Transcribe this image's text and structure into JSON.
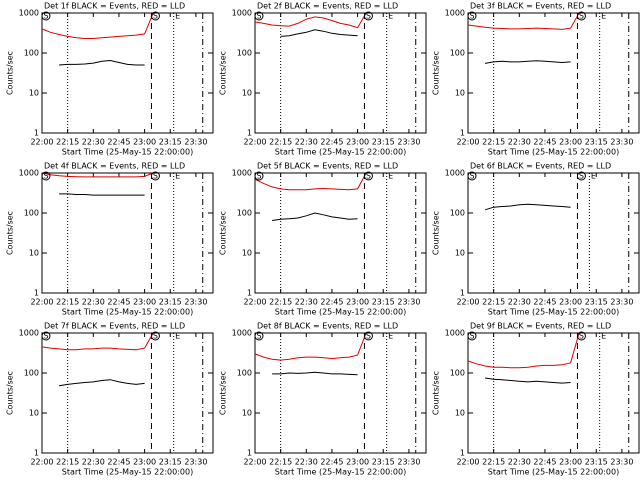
{
  "chart_data": [
    {
      "type": "line",
      "title": "Det 1f BLACK = Events, RED = LLD",
      "ylabel": "Counts/sec",
      "xlabel": "Start Time (25-May-15 22:00:00)",
      "x": [
        "22:00",
        "22:05",
        "22:10",
        "22:15",
        "22:20",
        "22:25",
        "22:30",
        "22:35",
        "22:40",
        "22:45",
        "22:50",
        "22:55",
        "23:00",
        "23:05"
      ],
      "series": [
        {
          "color": "#e00000",
          "values": [
            400,
            330,
            290,
            260,
            240,
            230,
            230,
            240,
            250,
            260,
            270,
            280,
            300,
            1000
          ]
        },
        {
          "color": "#000000",
          "values": [
            null,
            null,
            50,
            52,
            52,
            53,
            56,
            62,
            65,
            58,
            52,
            50,
            50,
            null
          ]
        }
      ],
      "xlim": [
        "22:00",
        "23:40"
      ],
      "xticks": [
        "22:00",
        "22:15",
        "22:30",
        "22:45",
        "23:00",
        "23:15",
        "23:30"
      ],
      "ylim": [
        1,
        1000
      ],
      "yticks": [
        1,
        10,
        100,
        1000
      ],
      "yscale": "log",
      "vlines": [
        {
          "x": "22:15",
          "style": "dotted"
        },
        {
          "x": "23:04",
          "style": "dashed"
        },
        {
          "x": "23:17",
          "style": "dotted"
        },
        {
          "x": "23:34",
          "style": "dashdot"
        }
      ],
      "annotations": [
        {
          "text": "S",
          "x": "22:00"
        },
        {
          "text": "S",
          "x": "23:04"
        },
        {
          "text": "E",
          "x": "23:17"
        }
      ]
    },
    {
      "type": "line",
      "title": "Det 2f BLACK = Events, RED = LLD",
      "ylabel": "Counts/sec",
      "xlabel": "Start Time (25-May-15 22:00:00)",
      "x": [
        "22:00",
        "22:05",
        "22:10",
        "22:15",
        "22:20",
        "22:25",
        "22:30",
        "22:35",
        "22:40",
        "22:45",
        "22:50",
        "22:55",
        "23:00",
        "23:05"
      ],
      "series": [
        {
          "color": "#e00000",
          "values": [
            600,
            550,
            500,
            480,
            470,
            550,
            700,
            800,
            750,
            650,
            550,
            500,
            430,
            1000
          ]
        },
        {
          "color": "#000000",
          "values": [
            null,
            null,
            null,
            260,
            270,
            300,
            330,
            380,
            350,
            310,
            290,
            280,
            270,
            null
          ]
        }
      ],
      "xlim": [
        "22:00",
        "23:40"
      ],
      "xticks": [
        "22:00",
        "22:15",
        "22:30",
        "22:45",
        "23:00",
        "23:15",
        "23:30"
      ],
      "ylim": [
        1,
        1000
      ],
      "yticks": [
        1,
        10,
        100,
        1000
      ],
      "yscale": "log",
      "vlines": [
        {
          "x": "22:15",
          "style": "dotted"
        },
        {
          "x": "23:04",
          "style": "dashed"
        },
        {
          "x": "23:17",
          "style": "dotted"
        },
        {
          "x": "23:34",
          "style": "dashdot"
        }
      ],
      "annotations": [
        {
          "text": "S",
          "x": "22:00"
        },
        {
          "text": "S",
          "x": "23:04"
        },
        {
          "text": "E",
          "x": "23:17"
        }
      ]
    },
    {
      "type": "line",
      "title": "Det 3f BLACK = Events, RED = LLD",
      "ylabel": "Counts/sec",
      "xlabel": "Start Time (25-May-15 22:00:00)",
      "x": [
        "22:00",
        "22:05",
        "22:10",
        "22:15",
        "22:20",
        "22:25",
        "22:30",
        "22:35",
        "22:40",
        "22:45",
        "22:50",
        "22:55",
        "23:00",
        "23:05"
      ],
      "series": [
        {
          "color": "#e00000",
          "values": [
            500,
            470,
            440,
            420,
            410,
            400,
            400,
            410,
            420,
            410,
            400,
            390,
            420,
            1000
          ]
        },
        {
          "color": "#000000",
          "values": [
            null,
            null,
            55,
            60,
            62,
            60,
            60,
            62,
            64,
            62,
            60,
            58,
            60,
            null
          ]
        }
      ],
      "xlim": [
        "22:00",
        "23:40"
      ],
      "xticks": [
        "22:00",
        "22:15",
        "22:30",
        "22:45",
        "23:00",
        "23:15",
        "23:30"
      ],
      "ylim": [
        1,
        1000
      ],
      "yticks": [
        1,
        10,
        100,
        1000
      ],
      "yscale": "log",
      "vlines": [
        {
          "x": "22:15",
          "style": "dotted"
        },
        {
          "x": "23:04",
          "style": "dashed"
        },
        {
          "x": "23:17",
          "style": "dotted"
        },
        {
          "x": "23:34",
          "style": "dashdot"
        }
      ],
      "annotations": [
        {
          "text": "S",
          "x": "22:00"
        },
        {
          "text": "S",
          "x": "23:04"
        },
        {
          "text": "E",
          "x": "23:17"
        }
      ]
    },
    {
      "type": "line",
      "title": "Det 4f BLACK = Events, RED = LLD",
      "ylabel": "Counts/sec",
      "xlabel": "Start Time (25-May-15 22:00:00)",
      "x": [
        "22:00",
        "22:05",
        "22:10",
        "22:15",
        "22:20",
        "22:25",
        "22:30",
        "22:35",
        "22:40",
        "22:45",
        "22:50",
        "22:55",
        "23:00",
        "23:05"
      ],
      "series": [
        {
          "color": "#e00000",
          "values": [
            1000,
            900,
            850,
            820,
            810,
            800,
            800,
            800,
            800,
            800,
            800,
            800,
            820,
            1000
          ]
        },
        {
          "color": "#000000",
          "values": [
            null,
            null,
            300,
            300,
            290,
            290,
            280,
            280,
            280,
            280,
            280,
            280,
            280,
            null
          ]
        }
      ],
      "xlim": [
        "22:00",
        "23:40"
      ],
      "xticks": [
        "22:00",
        "22:15",
        "22:30",
        "22:45",
        "23:00",
        "23:15",
        "23:30"
      ],
      "ylim": [
        1,
        1000
      ],
      "yticks": [
        1,
        10,
        100,
        1000
      ],
      "yscale": "log",
      "vlines": [
        {
          "x": "22:15",
          "style": "dotted"
        },
        {
          "x": "23:04",
          "style": "dashed"
        },
        {
          "x": "23:17",
          "style": "dotted"
        },
        {
          "x": "23:34",
          "style": "dashdot"
        }
      ],
      "annotations": [
        {
          "text": "S",
          "x": "22:00"
        },
        {
          "text": "S",
          "x": "23:04"
        },
        {
          "text": "E",
          "x": "23:17"
        }
      ]
    },
    {
      "type": "line",
      "title": "Det 5f BLACK = Events, RED = LLD",
      "ylabel": "Counts/sec",
      "xlabel": "Start Time (25-May-15 22:00:00)",
      "x": [
        "22:00",
        "22:05",
        "22:10",
        "22:15",
        "22:20",
        "22:25",
        "22:30",
        "22:35",
        "22:40",
        "22:45",
        "22:50",
        "22:55",
        "23:00",
        "23:05"
      ],
      "series": [
        {
          "color": "#e00000",
          "values": [
            700,
            550,
            450,
            400,
            380,
            380,
            380,
            400,
            410,
            400,
            390,
            380,
            400,
            1000
          ]
        },
        {
          "color": "#000000",
          "values": [
            null,
            null,
            65,
            70,
            72,
            75,
            85,
            100,
            90,
            80,
            75,
            70,
            72,
            null
          ]
        }
      ],
      "xlim": [
        "22:00",
        "23:40"
      ],
      "xticks": [
        "22:00",
        "22:15",
        "22:30",
        "22:45",
        "23:00",
        "23:15",
        "23:30"
      ],
      "ylim": [
        1,
        1000
      ],
      "yticks": [
        1,
        10,
        100,
        1000
      ],
      "yscale": "log",
      "vlines": [
        {
          "x": "22:15",
          "style": "dotted"
        },
        {
          "x": "23:04",
          "style": "dashed"
        },
        {
          "x": "23:17",
          "style": "dotted"
        },
        {
          "x": "23:34",
          "style": "dashdot"
        }
      ],
      "annotations": [
        {
          "text": "S",
          "x": "22:00"
        },
        {
          "text": "S",
          "x": "23:04"
        },
        {
          "text": "E",
          "x": "23:17"
        }
      ]
    },
    {
      "type": "line",
      "title": "Det 6f BLACK = Events, RED = LLD",
      "ylabel": "Counts/sec",
      "xlabel": "Start Time (25-May-15 22:00:00)",
      "x": [
        "22:00",
        "22:05",
        "22:10",
        "22:15",
        "22:20",
        "22:25",
        "22:30",
        "22:35",
        "22:40",
        "22:45",
        "22:50",
        "22:55",
        "23:00",
        "23:05"
      ],
      "series": [
        {
          "color": "#000000",
          "values": [
            null,
            null,
            120,
            140,
            145,
            150,
            160,
            165,
            160,
            155,
            150,
            145,
            140,
            null
          ]
        }
      ],
      "xlim": [
        "22:00",
        "23:40"
      ],
      "xticks": [
        "22:00",
        "22:15",
        "22:30",
        "22:45",
        "23:00",
        "23:15",
        "23:30"
      ],
      "ylim": [
        1,
        1000
      ],
      "yticks": [
        1,
        10,
        100,
        1000
      ],
      "yscale": "log",
      "vlines": [
        {
          "x": "22:15",
          "style": "dotted"
        },
        {
          "x": "23:04",
          "style": "dashed"
        },
        {
          "x": "23:11",
          "style": "dotted"
        },
        {
          "x": "23:34",
          "style": "dashdot"
        }
      ],
      "annotations": [
        {
          "text": "S",
          "x": "22:00"
        },
        {
          "text": "S",
          "x": "23:04"
        },
        {
          "text": "E",
          "x": "23:11"
        }
      ]
    },
    {
      "type": "line",
      "title": "Det 7f BLACK = Events, RED = LLD",
      "ylabel": "Counts/sec",
      "xlabel": "Start Time (25-May-15 22:00:00)",
      "x": [
        "22:00",
        "22:05",
        "22:10",
        "22:15",
        "22:20",
        "22:25",
        "22:30",
        "22:35",
        "22:40",
        "22:45",
        "22:50",
        "22:55",
        "23:00",
        "23:05"
      ],
      "series": [
        {
          "color": "#e00000",
          "values": [
            450,
            420,
            400,
            380,
            380,
            400,
            400,
            420,
            420,
            400,
            390,
            380,
            420,
            1000
          ]
        },
        {
          "color": "#000000",
          "values": [
            null,
            null,
            48,
            52,
            55,
            58,
            60,
            65,
            68,
            60,
            55,
            52,
            55,
            null
          ]
        }
      ],
      "xlim": [
        "22:00",
        "23:40"
      ],
      "xticks": [
        "22:00",
        "22:15",
        "22:30",
        "22:45",
        "23:00",
        "23:15",
        "23:30"
      ],
      "ylim": [
        1,
        1000
      ],
      "yticks": [
        1,
        10,
        100,
        1000
      ],
      "yscale": "log",
      "vlines": [
        {
          "x": "22:15",
          "style": "dotted"
        },
        {
          "x": "23:04",
          "style": "dashed"
        },
        {
          "x": "23:17",
          "style": "dotted"
        },
        {
          "x": "23:34",
          "style": "dashdot"
        }
      ],
      "annotations": [
        {
          "text": "S",
          "x": "22:00"
        },
        {
          "text": "S",
          "x": "23:04"
        },
        {
          "text": "E",
          "x": "23:17"
        }
      ]
    },
    {
      "type": "line",
      "title": "Det 8f BLACK = Events, RED = LLD",
      "ylabel": "Counts/sec",
      "xlabel": "Start Time (25-May-15 22:00:00)",
      "x": [
        "22:00",
        "22:05",
        "22:10",
        "22:15",
        "22:20",
        "22:25",
        "22:30",
        "22:35",
        "22:40",
        "22:45",
        "22:50",
        "22:55",
        "23:00",
        "23:05"
      ],
      "series": [
        {
          "color": "#e00000",
          "values": [
            300,
            250,
            220,
            210,
            220,
            240,
            250,
            250,
            240,
            230,
            240,
            250,
            280,
            1000
          ]
        },
        {
          "color": "#000000",
          "values": [
            null,
            null,
            95,
            95,
            100,
            98,
            100,
            105,
            100,
            95,
            95,
            92,
            90,
            null
          ]
        }
      ],
      "xlim": [
        "22:00",
        "23:40"
      ],
      "xticks": [
        "22:00",
        "22:15",
        "22:30",
        "22:45",
        "23:00",
        "23:15",
        "23:30"
      ],
      "ylim": [
        1,
        1000
      ],
      "yticks": [
        1,
        10,
        100,
        1000
      ],
      "yscale": "log",
      "vlines": [
        {
          "x": "22:15",
          "style": "dotted"
        },
        {
          "x": "23:04",
          "style": "dashed"
        },
        {
          "x": "23:17",
          "style": "dotted"
        },
        {
          "x": "23:34",
          "style": "dashdot"
        }
      ],
      "annotations": [
        {
          "text": "S",
          "x": "22:00"
        },
        {
          "text": "S",
          "x": "23:04"
        },
        {
          "text": "E",
          "x": "23:17"
        }
      ]
    },
    {
      "type": "line",
      "title": "Det 9f BLACK = Events, RED = LLD",
      "ylabel": "Counts/sec",
      "xlabel": "Start Time (25-May-15 22:00:00)",
      "x": [
        "22:00",
        "22:05",
        "22:10",
        "22:15",
        "22:20",
        "22:25",
        "22:30",
        "22:35",
        "22:40",
        "22:45",
        "22:50",
        "22:55",
        "23:00",
        "23:05"
      ],
      "series": [
        {
          "color": "#e00000",
          "values": [
            200,
            170,
            150,
            140,
            140,
            135,
            135,
            140,
            150,
            155,
            155,
            160,
            180,
            1000
          ]
        },
        {
          "color": "#000000",
          "values": [
            null,
            null,
            75,
            70,
            68,
            65,
            62,
            60,
            62,
            60,
            58,
            56,
            58,
            null
          ]
        }
      ],
      "xlim": [
        "22:00",
        "23:40"
      ],
      "xticks": [
        "22:00",
        "22:15",
        "22:30",
        "22:45",
        "23:00",
        "23:15",
        "23:30"
      ],
      "ylim": [
        1,
        1000
      ],
      "yticks": [
        1,
        10,
        100,
        1000
      ],
      "yscale": "log",
      "vlines": [
        {
          "x": "22:15",
          "style": "dotted"
        },
        {
          "x": "23:04",
          "style": "dashed"
        },
        {
          "x": "23:17",
          "style": "dotted"
        },
        {
          "x": "23:34",
          "style": "dashdot"
        }
      ],
      "annotations": [
        {
          "text": "S",
          "x": "22:00"
        },
        {
          "text": "S",
          "x": "23:04"
        },
        {
          "text": "E",
          "x": "23:17"
        }
      ]
    }
  ]
}
